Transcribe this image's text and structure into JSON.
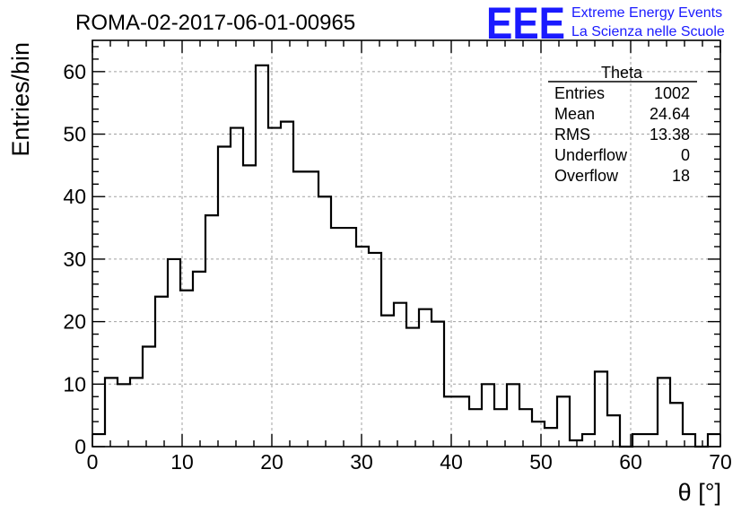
{
  "chart_data": {
    "type": "bar",
    "title": "ROMA-02-2017-06-01-00965",
    "xlabel": "θ [°]",
    "ylabel": "Entries/bin",
    "xlim": [
      0,
      70
    ],
    "ylim": [
      0,
      65
    ],
    "bin_width": 1.4,
    "x_ticks": [
      0,
      10,
      20,
      30,
      40,
      50,
      60,
      70
    ],
    "y_ticks": [
      0,
      10,
      20,
      30,
      40,
      50,
      60
    ],
    "grid": true,
    "values": [
      2,
      11,
      10,
      11,
      16,
      24,
      30,
      25,
      28,
      37,
      48,
      51,
      45,
      61,
      51,
      52,
      44,
      44,
      40,
      35,
      35,
      32,
      31,
      21,
      23,
      19,
      22,
      20,
      8,
      8,
      6,
      10,
      6,
      10,
      6,
      4,
      3,
      8,
      1,
      2,
      12,
      5,
      0,
      2,
      2,
      11,
      7,
      2,
      0,
      2
    ],
    "stats_box": {
      "title": "Theta",
      "position": "top-right",
      "rows": [
        {
          "label": "Entries",
          "value": "1002"
        },
        {
          "label": "Mean",
          "value": "24.64"
        },
        {
          "label": "RMS",
          "value": "13.38"
        },
        {
          "label": "Underflow",
          "value": "0"
        },
        {
          "label": "Overflow",
          "value": "18"
        }
      ]
    }
  },
  "logo": {
    "mark": "EEE",
    "line1": "Extreme Energy Events",
    "line2": "La Scienza nelle Scuole",
    "color": "#1a1aff"
  }
}
